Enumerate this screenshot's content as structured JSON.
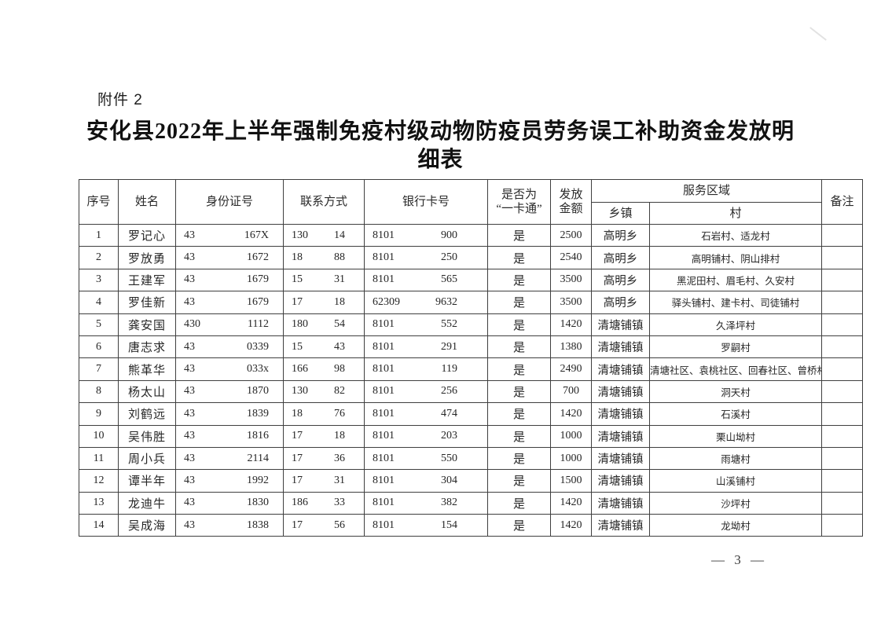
{
  "page": {
    "attachment_label": "附件 2",
    "title_line1": "安化县2022年上半年强制免疫村级动物防疫员劳务误工补助资金发放明",
    "title_line2": "细表",
    "page_number": "— 3 —"
  },
  "table": {
    "headers": {
      "no": "序号",
      "name": "姓名",
      "id_number": "身份证号",
      "contact": "联系方式",
      "bank_card": "银行卡号",
      "onecard_line1": "是否为",
      "onecard_line2": "“一卡通”",
      "amount_line1": "发放",
      "amount_line2": "金额",
      "service_area": "服务区域",
      "town": "乡镇",
      "village": "村",
      "remark": "备注"
    },
    "rows": [
      {
        "no": "1",
        "name": "罗记心",
        "id_prefix": "43",
        "id_suffix": "167X",
        "phone_prefix": "130",
        "phone_suffix": "14",
        "bank_prefix": "8101",
        "bank_suffix": "900",
        "onecard": "是",
        "amount": "2500",
        "town": "高明乡",
        "village": "石岩村、适龙村",
        "remark": ""
      },
      {
        "no": "2",
        "name": "罗放勇",
        "id_prefix": "43",
        "id_suffix": "1672",
        "phone_prefix": "18",
        "phone_suffix": "88",
        "bank_prefix": "8101",
        "bank_suffix": "250",
        "onecard": "是",
        "amount": "2540",
        "town": "高明乡",
        "village": "高明铺村、阴山排村",
        "remark": ""
      },
      {
        "no": "3",
        "name": "王建军",
        "id_prefix": "43",
        "id_suffix": "1679",
        "phone_prefix": "15",
        "phone_suffix": "31",
        "bank_prefix": "8101",
        "bank_suffix": "565",
        "onecard": "是",
        "amount": "3500",
        "town": "高明乡",
        "village": "黑泥田村、眉毛村、久安村",
        "remark": ""
      },
      {
        "no": "4",
        "name": "罗佳新",
        "id_prefix": "43",
        "id_suffix": "1679",
        "phone_prefix": "17",
        "phone_suffix": "18",
        "bank_prefix": "62309",
        "bank_suffix": "9632",
        "onecard": "是",
        "amount": "3500",
        "town": "高明乡",
        "village": "驿头铺村、建卡村、司徒铺村",
        "remark": ""
      },
      {
        "no": "5",
        "name": "龚安国",
        "id_prefix": "430",
        "id_suffix": "1112",
        "phone_prefix": "180",
        "phone_suffix": "54",
        "bank_prefix": "8101",
        "bank_suffix": "552",
        "onecard": "是",
        "amount": "1420",
        "town": "清塘铺镇",
        "village": "久泽坪村",
        "remark": ""
      },
      {
        "no": "6",
        "name": "唐志求",
        "id_prefix": "43",
        "id_suffix": "0339",
        "phone_prefix": "15",
        "phone_suffix": "43",
        "bank_prefix": "8101",
        "bank_suffix": "291",
        "onecard": "是",
        "amount": "1380",
        "town": "清塘铺镇",
        "village": "罗嗣村",
        "remark": ""
      },
      {
        "no": "7",
        "name": "熊革华",
        "id_prefix": "43",
        "id_suffix": "033x",
        "phone_prefix": "166",
        "phone_suffix": "98",
        "bank_prefix": "8101",
        "bank_suffix": "119",
        "onecard": "是",
        "amount": "2490",
        "town": "清塘铺镇",
        "village": "清塘社区、袁桃社区、回春社区、曾桥村",
        "remark": ""
      },
      {
        "no": "8",
        "name": "杨太山",
        "id_prefix": "43",
        "id_suffix": "1870",
        "phone_prefix": "130",
        "phone_suffix": "82",
        "bank_prefix": "8101",
        "bank_suffix": "256",
        "onecard": "是",
        "amount": "700",
        "town": "清塘铺镇",
        "village": "洞天村",
        "remark": ""
      },
      {
        "no": "9",
        "name": "刘鹤远",
        "id_prefix": "43",
        "id_suffix": "1839",
        "phone_prefix": "18",
        "phone_suffix": "76",
        "bank_prefix": "8101",
        "bank_suffix": "474",
        "onecard": "是",
        "amount": "1420",
        "town": "清塘铺镇",
        "village": "石溪村",
        "remark": ""
      },
      {
        "no": "10",
        "name": "吴伟胜",
        "id_prefix": "43",
        "id_suffix": "1816",
        "phone_prefix": "17",
        "phone_suffix": "18",
        "bank_prefix": "8101",
        "bank_suffix": "203",
        "onecard": "是",
        "amount": "1000",
        "town": "清塘铺镇",
        "village": "栗山坳村",
        "remark": ""
      },
      {
        "no": "11",
        "name": "周小兵",
        "id_prefix": "43",
        "id_suffix": "2114",
        "phone_prefix": "17",
        "phone_suffix": "36",
        "bank_prefix": "8101",
        "bank_suffix": "550",
        "onecard": "是",
        "amount": "1000",
        "town": "清塘铺镇",
        "village": "雨塘村",
        "remark": ""
      },
      {
        "no": "12",
        "name": "谭半年",
        "id_prefix": "43",
        "id_suffix": "1992",
        "phone_prefix": "17",
        "phone_suffix": "31",
        "bank_prefix": "8101",
        "bank_suffix": "304",
        "onecard": "是",
        "amount": "1500",
        "town": "清塘铺镇",
        "village": "山溪铺村",
        "remark": ""
      },
      {
        "no": "13",
        "name": "龙迪牛",
        "id_prefix": "43",
        "id_suffix": "1830",
        "phone_prefix": "186",
        "phone_suffix": "33",
        "bank_prefix": "8101",
        "bank_suffix": "382",
        "onecard": "是",
        "amount": "1420",
        "town": "清塘铺镇",
        "village": "沙坪村",
        "remark": ""
      },
      {
        "no": "14",
        "name": "吴成海",
        "id_prefix": "43",
        "id_suffix": "1838",
        "phone_prefix": "17",
        "phone_suffix": "56",
        "bank_prefix": "8101",
        "bank_suffix": "154",
        "onecard": "是",
        "amount": "1420",
        "town": "清塘铺镇",
        "village": "龙坳村",
        "remark": ""
      }
    ]
  }
}
